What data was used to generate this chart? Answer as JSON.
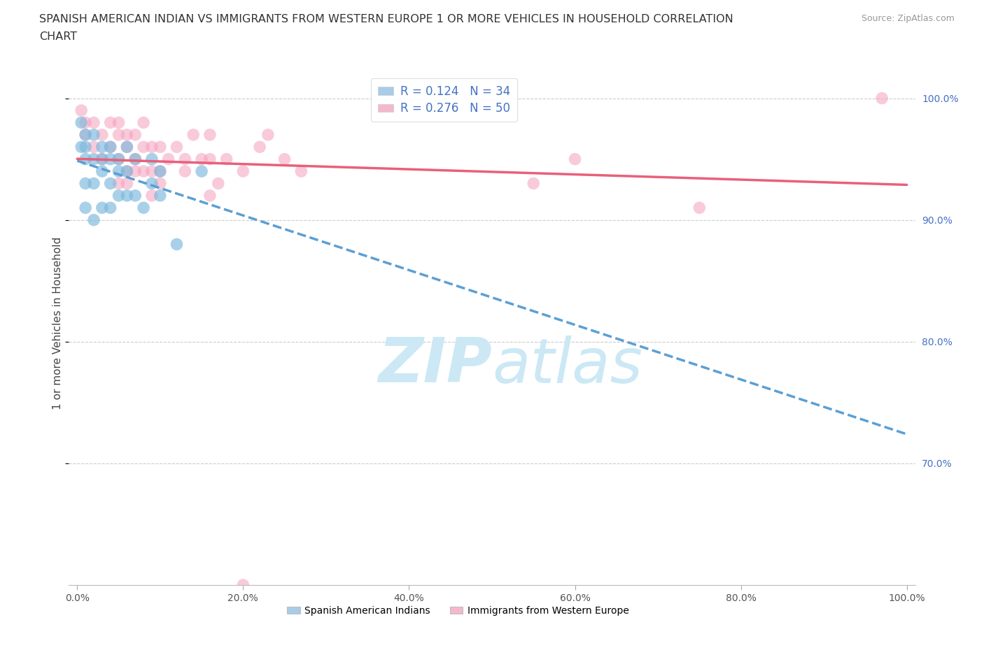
{
  "title_line1": "SPANISH AMERICAN INDIAN VS IMMIGRANTS FROM WESTERN EUROPE 1 OR MORE VEHICLES IN HOUSEHOLD CORRELATION",
  "title_line2": "CHART",
  "source": "Source: ZipAtlas.com",
  "ylabel": "1 or more Vehicles in Household",
  "xlim": [
    -1,
    101
  ],
  "ylim": [
    60,
    103
  ],
  "x_tick_vals": [
    0,
    20,
    40,
    60,
    80,
    100
  ],
  "x_tick_labels": [
    "0.0%",
    "20.0%",
    "40.0%",
    "60.0%",
    "80.0%",
    "100.0%"
  ],
  "y_tick_vals": [
    70,
    80,
    90,
    100
  ],
  "y_tick_labels": [
    "70.0%",
    "80.0%",
    "90.0%",
    "100.0%"
  ],
  "r1": 0.124,
  "n1": 34,
  "r2": 0.276,
  "n2": 50,
  "color1": "#7ab8dc",
  "color2": "#f5a0bc",
  "trend_color1": "#5b9fd4",
  "trend_color2": "#e8607a",
  "legend_color1": "#a8cce8",
  "legend_color2": "#f4b8cc",
  "watermark_color": "#cce8f5",
  "blue_x": [
    0.5,
    0.5,
    1,
    1,
    1,
    1,
    1,
    2,
    2,
    2,
    2,
    3,
    3,
    3,
    3,
    4,
    4,
    4,
    4,
    5,
    5,
    5,
    6,
    6,
    6,
    7,
    7,
    8,
    9,
    9,
    10,
    10,
    12,
    15
  ],
  "blue_y": [
    98,
    96,
    97,
    96,
    95,
    93,
    91,
    97,
    95,
    93,
    90,
    96,
    95,
    94,
    91,
    96,
    95,
    93,
    91,
    95,
    94,
    92,
    96,
    94,
    92,
    95,
    92,
    91,
    95,
    93,
    94,
    92,
    88,
    94
  ],
  "pink_x": [
    0.5,
    1,
    1,
    2,
    2,
    3,
    3,
    4,
    4,
    5,
    5,
    5,
    5,
    6,
    6,
    6,
    7,
    7,
    8,
    8,
    9,
    9,
    10,
    10,
    11,
    12,
    13,
    14,
    15,
    16,
    16,
    17,
    18,
    20,
    22,
    23,
    25,
    27,
    55,
    60,
    75,
    97,
    20,
    9,
    7,
    6,
    8,
    10,
    13,
    16
  ],
  "pink_y": [
    99,
    98,
    97,
    98,
    96,
    97,
    95,
    98,
    96,
    98,
    97,
    95,
    93,
    97,
    96,
    94,
    97,
    95,
    98,
    94,
    96,
    94,
    96,
    94,
    95,
    96,
    95,
    97,
    95,
    97,
    95,
    93,
    95,
    94,
    96,
    97,
    95,
    94,
    93,
    95,
    91,
    100,
    60,
    92,
    94,
    93,
    96,
    93,
    94,
    92
  ],
  "legend1_label": "Spanish American Indians",
  "legend2_label": "Immigrants from Western Europe"
}
